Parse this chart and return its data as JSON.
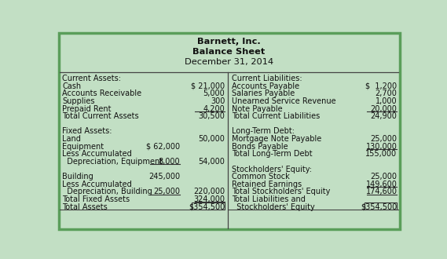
{
  "title_lines": [
    "Barnett, Inc.",
    "Balance Sheet",
    "December 31, 2014"
  ],
  "bg_color": "#c2dfc4",
  "border_color": "#5a9e5a",
  "text_color": "#111111",
  "left_rows": [
    {
      "label": "Current Assets:",
      "col1": "",
      "col2": "",
      "bold": false,
      "ul1": false,
      "ul2": false,
      "box2": false
    },
    {
      "label": "Cash",
      "col1": "",
      "col2": "$ 21,000",
      "bold": false,
      "ul1": false,
      "ul2": false,
      "box2": false
    },
    {
      "label": "Accounts Receivable",
      "col1": "",
      "col2": "5,000",
      "bold": false,
      "ul1": false,
      "ul2": false,
      "box2": false
    },
    {
      "label": "Supplies",
      "col1": "",
      "col2": "300",
      "bold": false,
      "ul1": false,
      "ul2": false,
      "box2": false
    },
    {
      "label": "Prepaid Rent",
      "col1": "",
      "col2": "4,200",
      "bold": false,
      "ul1": false,
      "ul2": true,
      "box2": false
    },
    {
      "label": "Total Current Assets",
      "col1": "",
      "col2": "30,500",
      "bold": false,
      "ul1": false,
      "ul2": false,
      "box2": false
    },
    {
      "label": "",
      "col1": "",
      "col2": "",
      "bold": false,
      "ul1": false,
      "ul2": false,
      "box2": false
    },
    {
      "label": "Fixed Assets:",
      "col1": "",
      "col2": "",
      "bold": false,
      "ul1": false,
      "ul2": false,
      "box2": false
    },
    {
      "label": "Land",
      "col1": "",
      "col2": "50,000",
      "bold": false,
      "ul1": false,
      "ul2": false,
      "box2": false
    },
    {
      "label": "Equipment",
      "col1": "$ 62,000",
      "col2": "",
      "bold": false,
      "ul1": false,
      "ul2": false,
      "box2": false
    },
    {
      "label": "Less Accumulated",
      "col1": "",
      "col2": "",
      "bold": false,
      "ul1": false,
      "ul2": false,
      "box2": false
    },
    {
      "label": "  Depreciation, Equipment",
      "col1": "8,000",
      "col2": "54,000",
      "bold": false,
      "ul1": true,
      "ul2": false,
      "box2": false
    },
    {
      "label": "",
      "col1": "",
      "col2": "",
      "bold": false,
      "ul1": false,
      "ul2": false,
      "box2": false
    },
    {
      "label": "Building",
      "col1": "245,000",
      "col2": "",
      "bold": false,
      "ul1": false,
      "ul2": false,
      "box2": false
    },
    {
      "label": "Less Accumulated",
      "col1": "",
      "col2": "",
      "bold": false,
      "ul1": false,
      "ul2": false,
      "box2": false
    },
    {
      "label": "  Depreciation, Building",
      "col1": "25,000",
      "col2": "220,000",
      "bold": false,
      "ul1": true,
      "ul2": false,
      "box2": false
    },
    {
      "label": "Total Fixed Assets",
      "col1": "",
      "col2": "324,000",
      "bold": false,
      "ul1": false,
      "ul2": true,
      "box2": false
    },
    {
      "label": "Total Assets",
      "col1": "",
      "col2": "$354,500",
      "bold": false,
      "ul1": false,
      "ul2": false,
      "box2": true
    }
  ],
  "right_rows": [
    {
      "label": "Current Liabilities:",
      "col1": "",
      "col2": "",
      "bold": false,
      "ul1": false,
      "ul2": false,
      "box2": false
    },
    {
      "label": "Accounts Payable",
      "col1": "",
      "col2": "$  1,200",
      "bold": false,
      "ul1": false,
      "ul2": false,
      "box2": false
    },
    {
      "label": "Salaries Payable",
      "col1": "",
      "col2": "2,700",
      "bold": false,
      "ul1": false,
      "ul2": false,
      "box2": false
    },
    {
      "label": "Unearned Service Revenue",
      "col1": "",
      "col2": "1,000",
      "bold": false,
      "ul1": false,
      "ul2": false,
      "box2": false
    },
    {
      "label": "Note Payable",
      "col1": "",
      "col2": "20,000",
      "bold": false,
      "ul1": false,
      "ul2": true,
      "box2": false
    },
    {
      "label": "Total Current Liabilities",
      "col1": "",
      "col2": "24,900",
      "bold": false,
      "ul1": false,
      "ul2": false,
      "box2": false
    },
    {
      "label": "",
      "col1": "",
      "col2": "",
      "bold": false,
      "ul1": false,
      "ul2": false,
      "box2": false
    },
    {
      "label": "Long-Term Debt:",
      "col1": "",
      "col2": "",
      "bold": false,
      "ul1": false,
      "ul2": false,
      "box2": false
    },
    {
      "label": "Mortgage Note Payable",
      "col1": "",
      "col2": "25,000",
      "bold": false,
      "ul1": false,
      "ul2": false,
      "box2": false
    },
    {
      "label": "Bonds Payable",
      "col1": "",
      "col2": "130,000",
      "bold": false,
      "ul1": false,
      "ul2": true,
      "box2": false
    },
    {
      "label": "Total Long-Term Debt",
      "col1": "",
      "col2": "155,000",
      "bold": false,
      "ul1": false,
      "ul2": false,
      "box2": false
    },
    {
      "label": "",
      "col1": "",
      "col2": "",
      "bold": false,
      "ul1": false,
      "ul2": false,
      "box2": false
    },
    {
      "label": "Stockholders' Equity:",
      "col1": "",
      "col2": "",
      "bold": false,
      "ul1": false,
      "ul2": false,
      "box2": false
    },
    {
      "label": "Common Stock",
      "col1": "",
      "col2": "25,000",
      "bold": false,
      "ul1": false,
      "ul2": false,
      "box2": false
    },
    {
      "label": "Retained Earnings",
      "col1": "",
      "col2": "149,600",
      "bold": false,
      "ul1": false,
      "ul2": true,
      "box2": false
    },
    {
      "label": "Total Stockholders' Equity",
      "col1": "",
      "col2": "174,600",
      "bold": false,
      "ul1": false,
      "ul2": true,
      "box2": false
    },
    {
      "label": "Total Liabilities and",
      "col1": "",
      "col2": "",
      "bold": false,
      "ul1": false,
      "ul2": false,
      "box2": false
    },
    {
      "label": "  Stockholders' Equity",
      "col1": "",
      "col2": "$354,500",
      "bold": false,
      "ul1": false,
      "ul2": false,
      "box2": true
    }
  ]
}
